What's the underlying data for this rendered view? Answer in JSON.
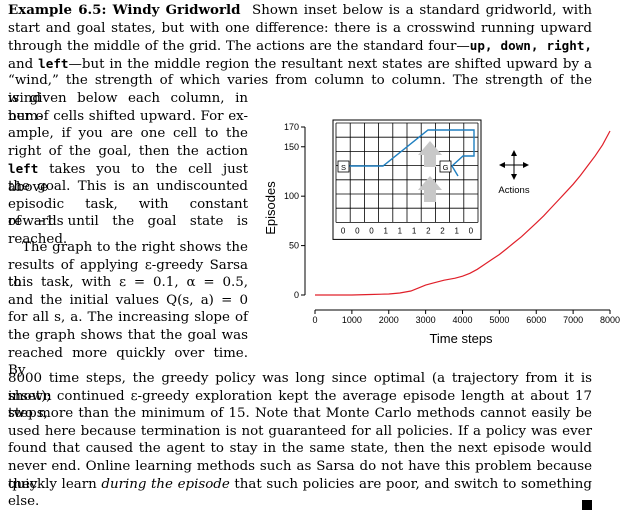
{
  "heading": "Example 6.5: Windy Gridworld",
  "lines": {
    "l1": "Shown inset below is a standard gridworld, with",
    "l2": "start and goal states, but with one difference: there is a crosswind running upward",
    "l3a": "through the middle of the grid. The actions are the standard four—",
    "l3b": "up, down, right,",
    "l4a": "and ",
    "l4b": "left",
    "l4c": "—but in the middle region the resultant next states are shifted upward by a",
    "l5": "“wind,” the strength of which varies from column to column. The strength of the wind",
    "n1": "is given below each column, in num-",
    "n2": "ber of cells shifted upward. For ex-",
    "n3": "ample, if you are one cell to the",
    "n4": "right of the goal, then the action",
    "n5a": "left",
    "n5b": " takes you to the cell just above",
    "n6": "the goal. This is an undiscounted",
    "n7": "episodic task, with constant rewards",
    "n8": "of −1 until the goal state is reached.",
    "n9": "The graph to the right shows the",
    "n10": "results of applying ε-greedy Sarsa to",
    "n11": "this task, with ε = 0.1, α = 0.5,",
    "n12": "and the initial values Q(s, a) = 0",
    "n13": "for all s, a. The increasing slope of",
    "n14": "the graph shows that the goal was",
    "n15": "reached more quickly over time. By",
    "f1": "8000 time steps, the greedy policy was long since optimal (a trajectory from it is shown",
    "f2": "inset); continued ε-greedy exploration kept the average episode length at about 17 steps,",
    "f3": "two more than the minimum of 15. Note that Monte Carlo methods cannot easily be",
    "f4": "used here because termination is not guaranteed for all policies. If a policy was ever",
    "f5": "found that caused the agent to stay in the same state, then the next episode would",
    "f6": "never end. Online learning methods such as Sarsa do not have this problem because they",
    "f7a": "quickly learn ",
    "f7b": "during the episode",
    "f7c": " that such policies are poor, and switch to something",
    "f8": "else."
  },
  "figure": {
    "start_label": "S",
    "goal_label": "G",
    "actions_label": "Actions",
    "wind_strengths": [
      "0",
      "0",
      "0",
      "1",
      "1",
      "1",
      "2",
      "2",
      "1",
      "0"
    ]
  },
  "chart_data": {
    "type": "line",
    "xlabel": "Time steps",
    "ylabel": "Episodes",
    "xlim": [
      0,
      8000
    ],
    "ylim": [
      0,
      170
    ],
    "x_ticks": [
      "0",
      "1000",
      "2000",
      "3000",
      "4000",
      "5000",
      "6000",
      "7000",
      "8000"
    ],
    "y_ticks": [
      "0",
      "50",
      "100",
      "150",
      "170"
    ],
    "line_color": "#e0202a",
    "series": [
      {
        "x": [
          0,
          500,
          1000,
          1500,
          2000,
          2300,
          2600,
          2800,
          3000,
          3200,
          3500,
          3800,
          4000,
          4200,
          4400,
          4600,
          4800,
          5000,
          5200,
          5400,
          5600,
          5800,
          6000,
          6200,
          6400,
          6600,
          6800,
          7000,
          7200,
          7400,
          7600,
          7800,
          8000
        ],
        "y": [
          0,
          0,
          0,
          0.5,
          1,
          2,
          4,
          7,
          10,
          12,
          15,
          17,
          19,
          22,
          26,
          31,
          36,
          41,
          47,
          53,
          59,
          66,
          73,
          80,
          88,
          96,
          104,
          112,
          121,
          131,
          141,
          152,
          166
        ]
      }
    ]
  }
}
